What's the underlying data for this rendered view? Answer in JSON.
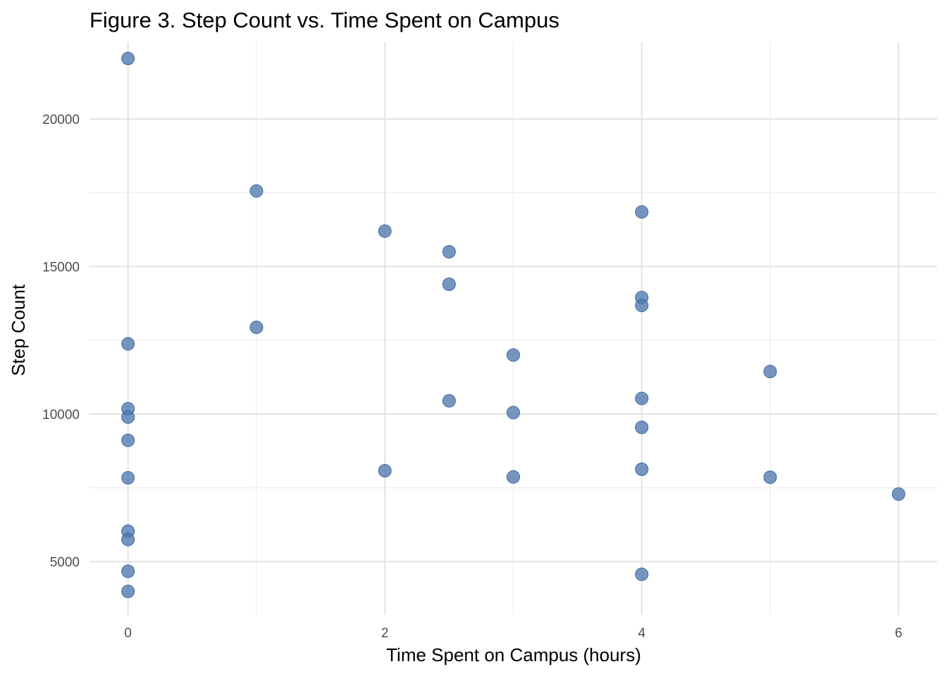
{
  "chart_data": {
    "type": "scatter",
    "title": "Figure 3. Step Count vs. Time Spent on Campus",
    "xlabel": "Time Spent on Campus (hours)",
    "ylabel": "Step Count",
    "xlim": [
      -0.3,
      6.3
    ],
    "ylim": [
      3200,
      22600
    ],
    "x_ticks": [
      0,
      2,
      4,
      6
    ],
    "x_minor": [
      1,
      3,
      5
    ],
    "y_ticks": [
      5000,
      10000,
      15000,
      20000
    ],
    "y_minor": [
      7500,
      12500,
      17500
    ],
    "x_tick_labels": [
      "0",
      "2",
      "4",
      "6"
    ],
    "y_tick_labels": [
      "5000",
      "10000",
      "15000",
      "20000"
    ],
    "grid": true,
    "point_color": "#4e79b0",
    "points": [
      {
        "x": 0,
        "y": 22050
      },
      {
        "x": 0,
        "y": 12380
      },
      {
        "x": 0,
        "y": 10180
      },
      {
        "x": 0,
        "y": 9900
      },
      {
        "x": 0,
        "y": 9110
      },
      {
        "x": 0,
        "y": 7840
      },
      {
        "x": 0,
        "y": 6030
      },
      {
        "x": 0,
        "y": 5750
      },
      {
        "x": 0,
        "y": 4670
      },
      {
        "x": 0,
        "y": 3990
      },
      {
        "x": 1,
        "y": 17560
      },
      {
        "x": 1,
        "y": 12940
      },
      {
        "x": 2,
        "y": 16200
      },
      {
        "x": 2,
        "y": 8080
      },
      {
        "x": 2.5,
        "y": 15500
      },
      {
        "x": 2.5,
        "y": 14400
      },
      {
        "x": 2.5,
        "y": 10450
      },
      {
        "x": 3,
        "y": 12000
      },
      {
        "x": 3,
        "y": 10050
      },
      {
        "x": 3,
        "y": 7870
      },
      {
        "x": 4,
        "y": 16850
      },
      {
        "x": 4,
        "y": 13950
      },
      {
        "x": 4,
        "y": 13680
      },
      {
        "x": 4,
        "y": 10530
      },
      {
        "x": 4,
        "y": 9550
      },
      {
        "x": 4,
        "y": 8130
      },
      {
        "x": 4,
        "y": 4570
      },
      {
        "x": 5,
        "y": 11440
      },
      {
        "x": 5,
        "y": 7860
      },
      {
        "x": 6,
        "y": 7290
      }
    ]
  }
}
